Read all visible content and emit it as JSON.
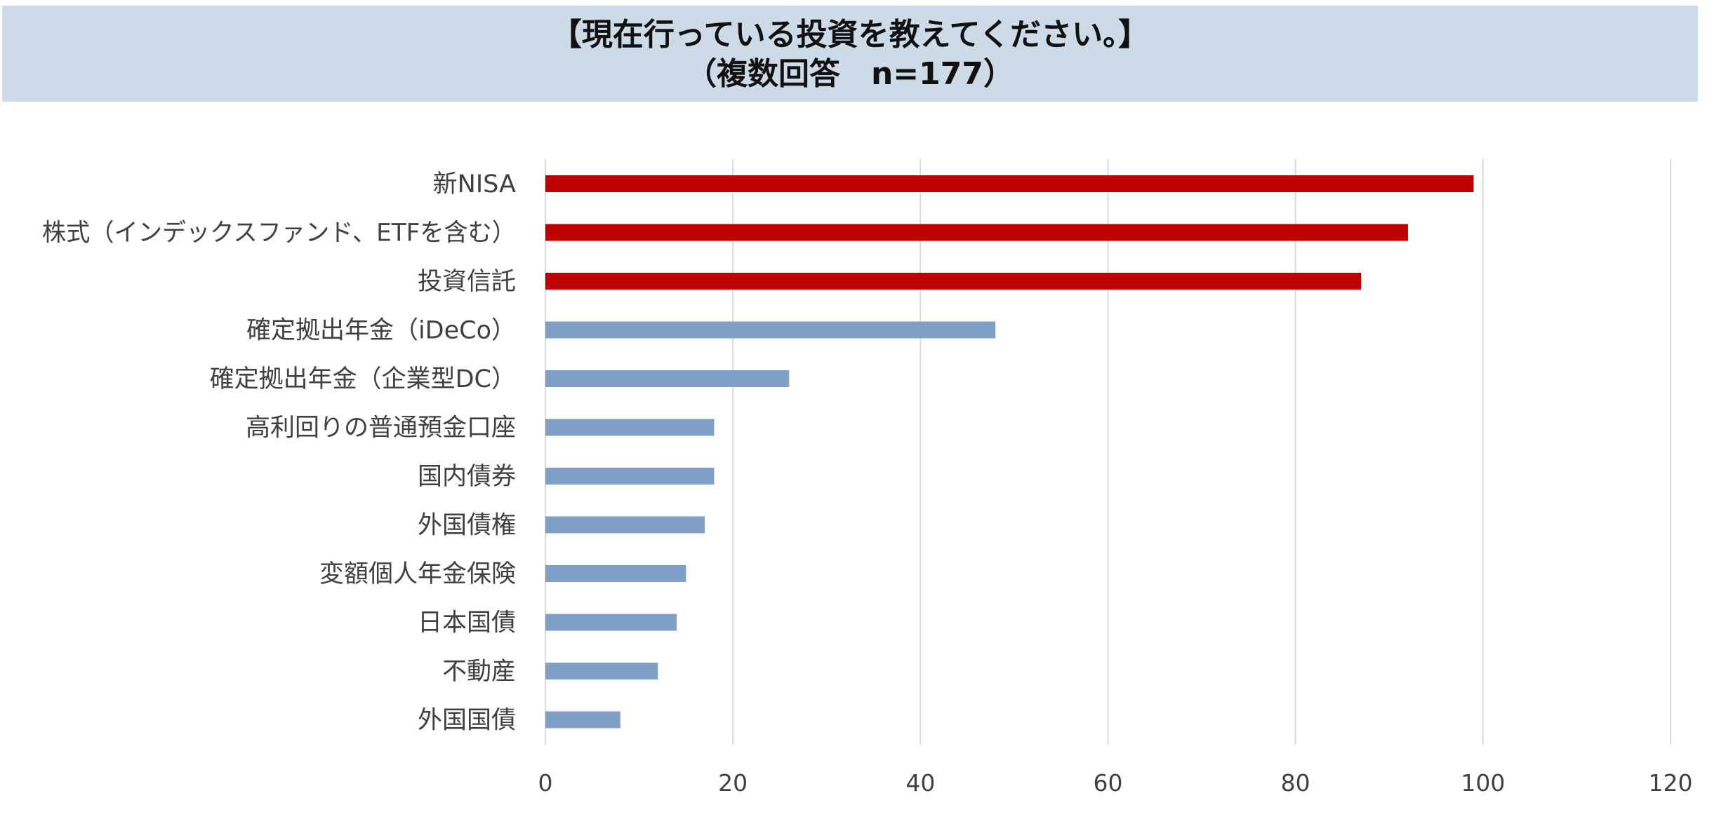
{
  "chart_data": {
    "type": "bar",
    "orientation": "horizontal",
    "title": "【現在行っている投資を教えてください。】",
    "subtitle": "（複数回答　n=177）",
    "categories": [
      "新NISA",
      "株式（インデックスファンド、ETFを含む）",
      "投資信託",
      "確定拠出年金（iDeCo）",
      "確定拠出年金（企業型DC）",
      "高利回りの普通預金口座",
      "国内債券",
      "外国債権",
      "変額個人年金保険",
      "日本国債",
      "不動産",
      "外国国債"
    ],
    "values": [
      99,
      92,
      87,
      48,
      26,
      18,
      18,
      17,
      15,
      14,
      12,
      8
    ],
    "highlight_count": 3,
    "highlight_color": "#c00000",
    "bar_color": "#7f9fc6",
    "xlim": [
      0,
      120
    ],
    "xticks": [
      0,
      20,
      40,
      60,
      80,
      100,
      120
    ],
    "grid": true,
    "gridline_color": "#d9d9d9",
    "legend": "none"
  }
}
